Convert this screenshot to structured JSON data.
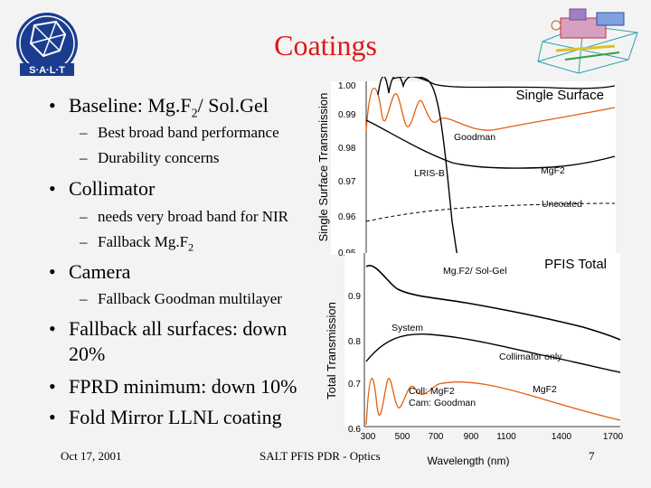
{
  "title": "Coatings",
  "logo_text": "S·A·L·T",
  "bullets": [
    {
      "text": "Baseline: Mg.F",
      "sub": "2",
      "after": "/ Sol.Gel"
    },
    {
      "sub_items": [
        "Best broad band performance",
        "Durability concerns"
      ]
    },
    {
      "text": "Collimator"
    },
    {
      "sub_items": [
        "needs very broad band for NIR",
        "Fallback Mg.F"
      ],
      "sub2": "2"
    },
    {
      "text": "Camera"
    },
    {
      "sub_items": [
        "Fallback Goodman multilayer"
      ]
    },
    {
      "text": "Fallback all surfaces: down 20%"
    },
    {
      "text": "FPRD minimum: down 10%"
    },
    {
      "text": "Fold Mirror LLNL coating"
    }
  ],
  "footer": {
    "date": "Oct 17, 2001",
    "center": "SALT PFIS PDR - Optics",
    "page": "7"
  },
  "chart_data": [
    {
      "type": "line",
      "title": "Single Surface",
      "ylabel": "Single Surface Transmission",
      "yticks": [
        "1.00",
        "0.99",
        "0.98",
        "0.97",
        "0.96",
        "0.95"
      ],
      "ylim": [
        0.95,
        1.0
      ],
      "series_labels": [
        "Goodman",
        "LRIS-B",
        "MgF2",
        "Uncoated"
      ],
      "series": [
        {
          "name": "Goodman",
          "color": "#e06010"
        },
        {
          "name": "LRIS-B",
          "color": "#000000"
        },
        {
          "name": "MgF2",
          "color": "#000000"
        },
        {
          "name": "Uncoated",
          "color": "#000000",
          "style": "dashed"
        }
      ]
    },
    {
      "type": "line",
      "title": "PFIS Total",
      "ylabel": "Total Transmission",
      "xlabel": "Wavelength (nm)",
      "xticks": [
        "300",
        "500",
        "700",
        "900",
        "1100",
        "1400",
        "1700"
      ],
      "yticks": [
        "0.9",
        "0.8",
        "0.7",
        "0.6"
      ],
      "ylim": [
        0.6,
        0.95
      ],
      "series_labels": [
        "Mg.F2/ Sol-Gel",
        "System",
        "Collimator only",
        "Coll: MgF2",
        "Cam: Goodman",
        "MgF2"
      ],
      "series": [
        {
          "name": "Mg.F2/ Sol-Gel",
          "color": "#000000"
        },
        {
          "name": "Collimator only",
          "color": "#000000"
        },
        {
          "name": "Coll: MgF2 / Cam: Goodman",
          "color": "#e06010"
        }
      ]
    }
  ]
}
